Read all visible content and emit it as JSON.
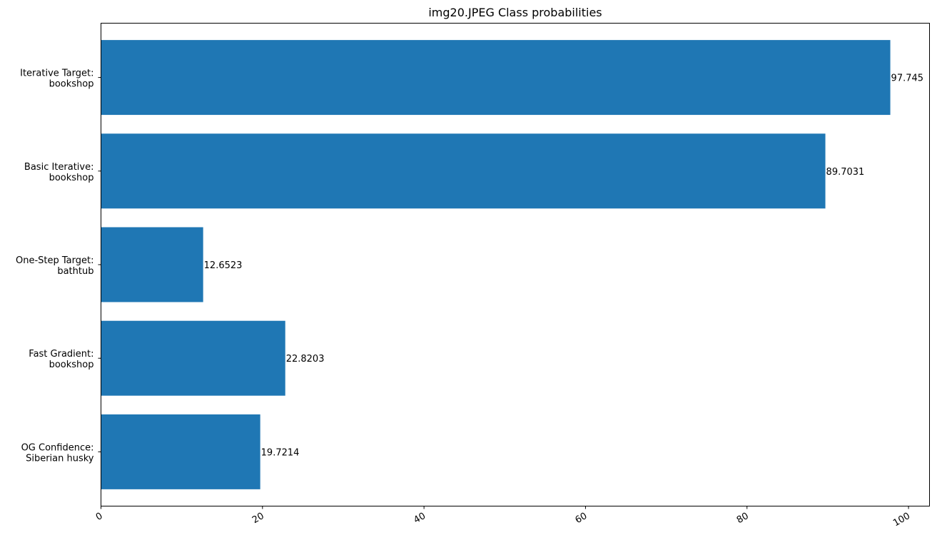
{
  "chart_data": {
    "type": "bar",
    "orientation": "horizontal",
    "title": "img20.JPEG Class probabilities",
    "xlabel": "",
    "ylabel": "",
    "categories": [
      [
        "Iterative Target:",
        "bookshop"
      ],
      [
        "Basic Iterative:",
        "bookshop"
      ],
      [
        "One-Step Target:",
        "bathtub"
      ],
      [
        "Fast Gradient:",
        "bookshop"
      ],
      [
        "OG Confidence:",
        "Siberian husky"
      ]
    ],
    "values": [
      97.745,
      89.7031,
      12.6523,
      22.8203,
      19.7214
    ],
    "value_labels": [
      "97.745",
      "89.7031",
      "12.6523",
      "22.8203",
      "19.7214"
    ],
    "xlim": [
      0,
      102.6
    ],
    "xticks": [
      0,
      20,
      40,
      60,
      80,
      100
    ],
    "xtick_labels": [
      "0",
      "20",
      "40",
      "60",
      "80",
      "100"
    ],
    "bar_color": "#1f77b4",
    "grid": false,
    "legend": "none"
  }
}
